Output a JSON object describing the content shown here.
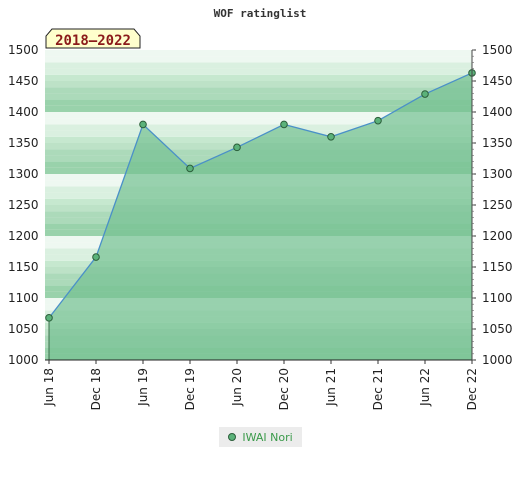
{
  "chart_data": {
    "type": "area",
    "title": "WOF ratinglist",
    "badge": "2018–2022",
    "x": [
      "Jun 18",
      "Dec 18",
      "Jun 19",
      "Dec 19",
      "Jun 20",
      "Dec 20",
      "Jun 21",
      "Dec 21",
      "Jun 22",
      "Dec 22"
    ],
    "series": [
      {
        "name": "IWAI Nori",
        "values": [
          1068,
          1166,
          1380,
          1309,
          1343,
          1380,
          1360,
          1386,
          1429,
          1463
        ]
      }
    ],
    "ylim": [
      1000,
      1500
    ],
    "yticks": [
      1000,
      1050,
      1100,
      1150,
      1200,
      1250,
      1300,
      1350,
      1400,
      1450,
      1500
    ],
    "grid": true,
    "legend_position": "bottom",
    "colors": {
      "line": "#4a90c8",
      "area": "#7bc497",
      "point": "#5bb27a",
      "point_border": "#2b5e3a"
    }
  }
}
